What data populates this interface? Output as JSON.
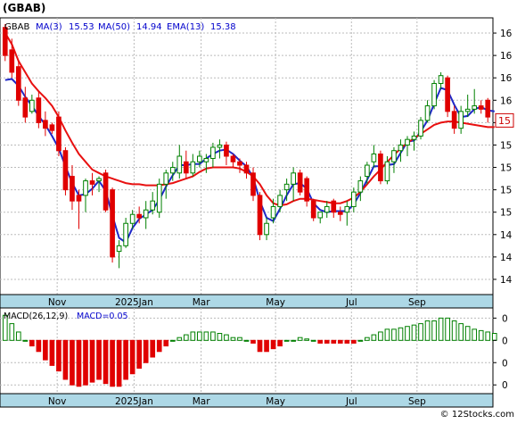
{
  "title": "(GBAB)",
  "watermark": "© 12Stocks.com",
  "chart_data": [
    {
      "type": "candlestick",
      "ticker_label": "GBAB",
      "legend": [
        {
          "name": "MA(3)",
          "value": "15.53",
          "color": "#0000cc"
        },
        {
          "name": "MA(50)",
          "value": "14.94",
          "color": "#0000cc"
        },
        {
          "name": "EMA(13)",
          "value": "15.38",
          "color": "#0000cc"
        }
      ],
      "y_axis_ticks": [
        "16",
        "16",
        "16",
        "16",
        "15",
        "15",
        "15",
        "15",
        "15",
        "14",
        "14",
        "14"
      ],
      "y_tick_values": [
        16.2,
        16.0,
        15.8,
        15.6,
        15.4,
        15.2,
        15.0,
        14.8,
        14.6,
        14.4,
        14.2,
        14.0
      ],
      "y_range": [
        13.88,
        16.32
      ],
      "last_price_label": "15",
      "last_price_value": 15.42,
      "x_axis_labels": [
        "Nov",
        "2025Jan",
        "Mar",
        "May",
        "Jul",
        "Sep"
      ],
      "x_label_positions": [
        0.116,
        0.272,
        0.408,
        0.559,
        0.713,
        0.846
      ],
      "grid": true,
      "up_color": "#008000",
      "down_color": "#e00000",
      "ma_short_color": "#e81010",
      "ma_long_color": "#1f28c8",
      "candles": [
        {
          "o": 16.25,
          "h": 16.28,
          "l": 15.95,
          "c": 16.0
        },
        {
          "o": 16.05,
          "h": 16.15,
          "l": 15.8,
          "c": 15.85
        },
        {
          "o": 15.9,
          "h": 15.95,
          "l": 15.55,
          "c": 15.6
        },
        {
          "o": 15.62,
          "h": 15.72,
          "l": 15.4,
          "c": 15.45
        },
        {
          "o": 15.5,
          "h": 15.65,
          "l": 15.48,
          "c": 15.6
        },
        {
          "o": 15.62,
          "h": 15.68,
          "l": 15.35,
          "c": 15.4
        },
        {
          "o": 15.42,
          "h": 15.5,
          "l": 15.28,
          "c": 15.35
        },
        {
          "o": 15.38,
          "h": 15.4,
          "l": 15.3,
          "c": 15.33
        },
        {
          "o": 15.45,
          "h": 15.5,
          "l": 15.1,
          "c": 15.15
        },
        {
          "o": 15.15,
          "h": 15.18,
          "l": 14.75,
          "c": 14.8
        },
        {
          "o": 14.92,
          "h": 15.02,
          "l": 14.62,
          "c": 14.7
        },
        {
          "o": 14.75,
          "h": 14.8,
          "l": 14.45,
          "c": 14.7
        },
        {
          "o": 14.75,
          "h": 14.9,
          "l": 14.6,
          "c": 14.88
        },
        {
          "o": 14.88,
          "h": 14.95,
          "l": 14.75,
          "c": 14.85
        },
        {
          "o": 14.88,
          "h": 14.92,
          "l": 14.78,
          "c": 14.9
        },
        {
          "o": 14.95,
          "h": 14.98,
          "l": 14.6,
          "c": 14.62
        },
        {
          "o": 14.8,
          "h": 14.82,
          "l": 14.15,
          "c": 14.2
        },
        {
          "o": 14.25,
          "h": 14.35,
          "l": 14.1,
          "c": 14.3
        },
        {
          "o": 14.3,
          "h": 14.55,
          "l": 14.28,
          "c": 14.5
        },
        {
          "o": 14.5,
          "h": 14.62,
          "l": 14.45,
          "c": 14.58
        },
        {
          "o": 14.58,
          "h": 14.65,
          "l": 14.5,
          "c": 14.55
        },
        {
          "o": 14.55,
          "h": 14.7,
          "l": 14.45,
          "c": 14.62
        },
        {
          "o": 14.62,
          "h": 14.78,
          "l": 14.58,
          "c": 14.7
        },
        {
          "o": 14.6,
          "h": 14.9,
          "l": 14.55,
          "c": 14.85
        },
        {
          "o": 14.85,
          "h": 14.98,
          "l": 14.72,
          "c": 14.95
        },
        {
          "o": 14.95,
          "h": 15.05,
          "l": 14.88,
          "c": 15.0
        },
        {
          "o": 14.95,
          "h": 15.2,
          "l": 14.9,
          "c": 15.1
        },
        {
          "o": 15.05,
          "h": 15.15,
          "l": 14.9,
          "c": 14.95
        },
        {
          "o": 14.95,
          "h": 15.12,
          "l": 14.92,
          "c": 15.05
        },
        {
          "o": 15.05,
          "h": 15.15,
          "l": 15.0,
          "c": 15.1
        },
        {
          "o": 15.05,
          "h": 15.12,
          "l": 14.95,
          "c": 15.08
        },
        {
          "o": 15.08,
          "h": 15.22,
          "l": 15.0,
          "c": 15.18
        },
        {
          "o": 15.18,
          "h": 15.25,
          "l": 15.08,
          "c": 15.2
        },
        {
          "o": 15.2,
          "h": 15.23,
          "l": 15.02,
          "c": 15.1
        },
        {
          "o": 15.1,
          "h": 15.12,
          "l": 15.0,
          "c": 15.05
        },
        {
          "o": 15.05,
          "h": 15.08,
          "l": 14.95,
          "c": 15.02
        },
        {
          "o": 15.02,
          "h": 15.05,
          "l": 14.9,
          "c": 14.95
        },
        {
          "o": 14.95,
          "h": 15.0,
          "l": 14.7,
          "c": 14.75
        },
        {
          "o": 14.75,
          "h": 14.78,
          "l": 14.35,
          "c": 14.4
        },
        {
          "o": 14.4,
          "h": 14.55,
          "l": 14.35,
          "c": 14.5
        },
        {
          "o": 14.55,
          "h": 14.72,
          "l": 14.5,
          "c": 14.65
        },
        {
          "o": 14.65,
          "h": 14.8,
          "l": 14.6,
          "c": 14.75
        },
        {
          "o": 14.8,
          "h": 14.9,
          "l": 14.7,
          "c": 14.85
        },
        {
          "o": 14.85,
          "h": 15.0,
          "l": 14.7,
          "c": 14.95
        },
        {
          "o": 14.95,
          "h": 14.98,
          "l": 14.75,
          "c": 14.78
        },
        {
          "o": 14.9,
          "h": 14.92,
          "l": 14.65,
          "c": 14.7
        },
        {
          "o": 14.7,
          "h": 14.72,
          "l": 14.52,
          "c": 14.55
        },
        {
          "o": 14.55,
          "h": 14.6,
          "l": 14.5,
          "c": 14.6
        },
        {
          "o": 14.6,
          "h": 14.7,
          "l": 14.55,
          "c": 14.65
        },
        {
          "o": 14.7,
          "h": 14.72,
          "l": 14.55,
          "c": 14.6
        },
        {
          "o": 14.6,
          "h": 14.65,
          "l": 14.52,
          "c": 14.58
        },
        {
          "o": 14.6,
          "h": 14.7,
          "l": 14.48,
          "c": 14.65
        },
        {
          "o": 14.65,
          "h": 14.82,
          "l": 14.6,
          "c": 14.78
        },
        {
          "o": 14.78,
          "h": 14.92,
          "l": 14.7,
          "c": 14.88
        },
        {
          "o": 14.92,
          "h": 15.05,
          "l": 14.85,
          "c": 15.02
        },
        {
          "o": 15.05,
          "h": 15.2,
          "l": 15.0,
          "c": 15.12
        },
        {
          "o": 15.12,
          "h": 15.15,
          "l": 14.85,
          "c": 14.88
        },
        {
          "o": 14.88,
          "h": 15.1,
          "l": 14.85,
          "c": 15.05
        },
        {
          "o": 15.05,
          "h": 15.18,
          "l": 14.95,
          "c": 15.15
        },
        {
          "o": 15.15,
          "h": 15.25,
          "l": 15.05,
          "c": 15.2
        },
        {
          "o": 15.2,
          "h": 15.28,
          "l": 15.1,
          "c": 15.25
        },
        {
          "o": 15.25,
          "h": 15.32,
          "l": 15.15,
          "c": 15.28
        },
        {
          "o": 15.28,
          "h": 15.45,
          "l": 15.25,
          "c": 15.42
        },
        {
          "o": 15.42,
          "h": 15.6,
          "l": 15.4,
          "c": 15.55
        },
        {
          "o": 15.55,
          "h": 15.78,
          "l": 15.52,
          "c": 15.75
        },
        {
          "o": 15.75,
          "h": 15.85,
          "l": 15.7,
          "c": 15.82
        },
        {
          "o": 15.8,
          "h": 15.82,
          "l": 15.45,
          "c": 15.5
        },
        {
          "o": 15.5,
          "h": 15.55,
          "l": 15.3,
          "c": 15.35
        },
        {
          "o": 15.35,
          "h": 15.55,
          "l": 15.3,
          "c": 15.5
        },
        {
          "o": 15.5,
          "h": 15.65,
          "l": 15.45,
          "c": 15.52
        },
        {
          "o": 15.52,
          "h": 15.7,
          "l": 15.48,
          "c": 15.55
        },
        {
          "o": 15.55,
          "h": 15.6,
          "l": 15.48,
          "c": 15.52
        },
        {
          "o": 15.6,
          "h": 15.62,
          "l": 15.4,
          "c": 15.45
        }
      ],
      "ma_short": [
        16.2,
        16.1,
        15.95,
        15.85,
        15.75,
        15.68,
        15.62,
        15.55,
        15.45,
        15.33,
        15.22,
        15.12,
        15.05,
        14.98,
        14.95,
        14.92,
        14.9,
        14.88,
        14.86,
        14.85,
        14.85,
        14.84,
        14.84,
        14.84,
        14.85,
        14.86,
        14.88,
        14.9,
        14.92,
        14.96,
        14.99,
        15.0,
        15.0,
        15.0,
        15.0,
        14.99,
        14.96,
        14.92,
        14.85,
        14.75,
        14.68,
        14.66,
        14.67,
        14.7,
        14.72,
        14.72,
        14.71,
        14.7,
        14.69,
        14.68,
        14.68,
        14.7,
        14.73,
        14.78,
        14.85,
        14.92,
        14.98,
        15.05,
        15.11,
        15.17,
        15.22,
        15.26,
        15.3,
        15.34,
        15.38,
        15.4,
        15.41,
        15.41,
        15.4,
        15.39,
        15.38,
        15.37,
        15.36,
        15.36
      ],
      "ma_long": [
        15.78,
        15.79,
        15.73,
        15.63,
        15.55,
        15.46,
        15.38,
        15.28,
        15.17,
        15.01,
        14.86,
        14.75,
        14.76,
        14.81,
        14.88,
        14.79,
        14.57,
        14.37,
        14.33,
        14.46,
        14.54,
        14.58,
        14.62,
        14.71,
        14.83,
        14.93,
        15.02,
        15.02,
        15.03,
        15.03,
        15.08,
        15.12,
        15.15,
        15.16,
        15.12,
        15.06,
        15.01,
        14.91,
        14.7,
        14.55,
        14.52,
        14.63,
        14.75,
        14.85,
        14.86,
        14.81,
        14.68,
        14.62,
        14.6,
        14.61,
        14.61,
        14.61,
        14.67,
        14.77,
        14.89,
        15.01,
        15.01,
        15.02,
        15.03,
        15.13,
        15.23,
        15.24,
        15.32,
        15.42,
        15.57,
        15.71,
        15.69,
        15.56,
        15.45,
        15.46,
        15.52,
        15.54,
        15.51,
        15.5
      ]
    },
    {
      "type": "bar",
      "legend": [
        {
          "name": "MACD(26,12,9)",
          "color": "#000000"
        },
        {
          "name": "MACD=0.05",
          "color": "#0000cc"
        }
      ],
      "y_axis_ticks": [
        "0",
        "0",
        "0",
        "0"
      ],
      "y_tick_values": [
        0.08,
        0.0,
        -0.08,
        -0.16
      ],
      "y_range": [
        -0.185,
        0.11
      ],
      "x_axis_labels": [
        "Nov",
        "2025Jan",
        "Mar",
        "May",
        "Jul",
        "Sep"
      ],
      "positive_color": "#008000",
      "negative_color": "#e00000",
      "values": [
        0.09,
        0.06,
        0.03,
        0.0,
        -0.02,
        -0.04,
        -0.07,
        -0.09,
        -0.11,
        -0.14,
        -0.16,
        -0.165,
        -0.16,
        -0.15,
        -0.14,
        -0.155,
        -0.165,
        -0.165,
        -0.14,
        -0.12,
        -0.1,
        -0.08,
        -0.06,
        -0.04,
        -0.02,
        0.0,
        0.01,
        0.02,
        0.03,
        0.03,
        0.03,
        0.03,
        0.025,
        0.02,
        0.01,
        0.01,
        0.0,
        -0.01,
        -0.04,
        -0.04,
        -0.03,
        -0.02,
        0.0,
        0.0,
        0.01,
        0.005,
        0.0,
        -0.01,
        -0.01,
        -0.01,
        -0.01,
        -0.01,
        -0.01,
        0.0,
        0.01,
        0.02,
        0.03,
        0.04,
        0.04,
        0.045,
        0.05,
        0.055,
        0.06,
        0.07,
        0.07,
        0.08,
        0.08,
        0.07,
        0.06,
        0.05,
        0.04,
        0.035,
        0.03,
        0.025
      ]
    }
  ]
}
